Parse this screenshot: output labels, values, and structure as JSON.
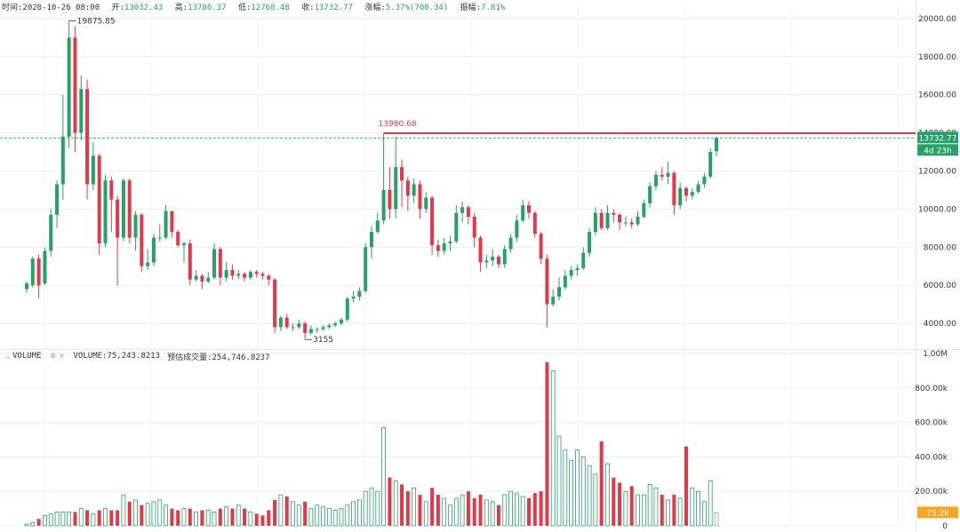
{
  "info": {
    "time_label": "时间:",
    "time_value": "2020-10-26 08:00",
    "open_label": "开:",
    "open_value": "13032.43",
    "high_label": "高:",
    "high_value": "13786.37",
    "low_label": "低:",
    "low_value": "12768.48",
    "close_label": "收:",
    "close_value": "13732.77",
    "change_label": "涨幅:",
    "change_value": "5.37%(700.34)",
    "amp_label": "振幅:",
    "amp_value": "7.81%"
  },
  "volume_header": {
    "collapse_glyph": "⌄",
    "label": "VOLUME",
    "settings_glyph": "⚙",
    "close_glyph": "×",
    "volume_text": "VOLUME:75,243.8213",
    "estimate_text": "预估成交量:254,746.8237"
  },
  "colors": {
    "up": "#26a269",
    "down": "#e0394a",
    "grid": "#eeeeee",
    "price_line": "#e0394a",
    "current_tag": "#26a269",
    "volume_tag": "#f5a623"
  },
  "chart_data": {
    "type": "candlestick",
    "price_axis": {
      "ticks": [
        "20000.00",
        "18000.00",
        "16000.00",
        "14000.00",
        "12000.00",
        "10000.00",
        "8000.00",
        "6000.00",
        "4000.00"
      ],
      "range": [
        2700,
        20600
      ]
    },
    "volume_axis": {
      "ticks": [
        "1.00M",
        "800.00k",
        "600.00k",
        "400.00k",
        "200.00k",
        "0"
      ],
      "range": [
        0,
        1000000
      ]
    },
    "annotations": {
      "high_label": "19875.85",
      "low_label": "3155",
      "resistance_label": "13980.68",
      "resistance_value": 13980.68,
      "current_price": "13732.77",
      "current_price_value": 13732.77,
      "countdown": "4d 23h",
      "current_volume": "75.2k"
    },
    "candles": [
      [
        5800,
        6100,
        5600,
        6200,
        0.01
      ],
      [
        6000,
        7400,
        5900,
        7500,
        0.02
      ],
      [
        7400,
        6000,
        5300,
        7600,
        0.04
      ],
      [
        6100,
        7800,
        6000,
        8000,
        0.06
      ],
      [
        7800,
        9700,
        7500,
        10000,
        0.07
      ],
      [
        9700,
        11300,
        9000,
        11500,
        0.08
      ],
      [
        11300,
        13800,
        10500,
        16000,
        0.08
      ],
      [
        13800,
        19000,
        13200,
        19875.85,
        0.08
      ],
      [
        19000,
        14000,
        13000,
        19600,
        0.08
      ],
      [
        14000,
        16300,
        13600,
        17000,
        0.1
      ],
      [
        16300,
        11300,
        10500,
        16800,
        0.09
      ],
      [
        11300,
        12800,
        11000,
        13500,
        0.07
      ],
      [
        12800,
        8200,
        7600,
        12900,
        0.09
      ],
      [
        8200,
        11500,
        8000,
        11800,
        0.1
      ],
      [
        11500,
        10500,
        8800,
        11700,
        0.09
      ],
      [
        10500,
        8500,
        6000,
        10700,
        0.09
      ],
      [
        8500,
        11500,
        8300,
        11600,
        0.18
      ],
      [
        11500,
        8500,
        8200,
        11600,
        0.14
      ],
      [
        8500,
        9700,
        7800,
        9900,
        0.15
      ],
      [
        9700,
        7000,
        6700,
        9800,
        0.12
      ],
      [
        7000,
        7200,
        6800,
        7900,
        0.13
      ],
      [
        7200,
        8500,
        7000,
        8700,
        0.14
      ],
      [
        8500,
        8500,
        8300,
        9200,
        0.15
      ],
      [
        8500,
        9900,
        8400,
        10200,
        0.12
      ],
      [
        9900,
        8800,
        8500,
        9900,
        0.1
      ],
      [
        8800,
        8100,
        8000,
        8900,
        0.09
      ],
      [
        8100,
        8200,
        7200,
        8300,
        0.1
      ],
      [
        8200,
        6300,
        6000,
        8400,
        0.1
      ],
      [
        6300,
        6500,
        6200,
        6800,
        0.08
      ],
      [
        6500,
        6200,
        5800,
        6600,
        0.09
      ],
      [
        6200,
        6400,
        6100,
        6700,
        0.09
      ],
      [
        6400,
        7900,
        6300,
        8200,
        0.08
      ],
      [
        7900,
        6400,
        6000,
        8000,
        0.1
      ],
      [
        6400,
        6800,
        6200,
        7200,
        0.11
      ],
      [
        6800,
        6500,
        6300,
        7100,
        0.1
      ],
      [
        6500,
        6600,
        6300,
        6800,
        0.12
      ],
      [
        6600,
        6400,
        6200,
        6700,
        0.1
      ],
      [
        6400,
        6700,
        6300,
        6800,
        0.08
      ],
      [
        6700,
        6600,
        6400,
        6800,
        0.07
      ],
      [
        6600,
        6500,
        6300,
        6700,
        0.06
      ],
      [
        6500,
        6300,
        6000,
        6600,
        0.09
      ],
      [
        6300,
        3800,
        3500,
        6400,
        0.15
      ],
      [
        3800,
        4300,
        3600,
        4400,
        0.18
      ],
      [
        4300,
        3800,
        3700,
        4500,
        0.17
      ],
      [
        3800,
        3800,
        3600,
        4000,
        0.14
      ],
      [
        3800,
        4000,
        3700,
        4200,
        0.12
      ],
      [
        4000,
        3500,
        3155,
        4100,
        0.14
      ],
      [
        3500,
        3700,
        3400,
        3900,
        0.1
      ],
      [
        3700,
        3700,
        3500,
        3800,
        0.12
      ],
      [
        3700,
        3800,
        3600,
        3900,
        0.11
      ],
      [
        3800,
        3900,
        3700,
        4000,
        0.1
      ],
      [
        3900,
        4000,
        3800,
        4100,
        0.09
      ],
      [
        4000,
        4200,
        3900,
        4300,
        0.1
      ],
      [
        4200,
        5300,
        4100,
        5400,
        0.12
      ],
      [
        5300,
        5400,
        5100,
        5700,
        0.14
      ],
      [
        5400,
        5700,
        5200,
        5900,
        0.15
      ],
      [
        5700,
        8000,
        5600,
        8200,
        0.2
      ],
      [
        8000,
        8800,
        7400,
        9100,
        0.22
      ],
      [
        8800,
        9400,
        8700,
        9800,
        0.2
      ],
      [
        9400,
        11000,
        9200,
        13980.68,
        0.57
      ],
      [
        11000,
        10000,
        9500,
        12200,
        0.28
      ],
      [
        10000,
        12200,
        9500,
        13800,
        0.26
      ],
      [
        12200,
        11500,
        10100,
        12600,
        0.24
      ],
      [
        11500,
        10700,
        9900,
        11700,
        0.2
      ],
      [
        10700,
        11300,
        10300,
        11600,
        0.22
      ],
      [
        11300,
        10000,
        9500,
        11500,
        0.18
      ],
      [
        10000,
        10600,
        9800,
        10900,
        0.14
      ],
      [
        10600,
        8100,
        7600,
        10700,
        0.22
      ],
      [
        8100,
        7800,
        7500,
        8400,
        0.18
      ],
      [
        7800,
        8200,
        7600,
        8500,
        0.16
      ],
      [
        8200,
        8300,
        7800,
        8600,
        0.12
      ],
      [
        8300,
        9800,
        8200,
        10200,
        0.16
      ],
      [
        9800,
        10100,
        9300,
        10400,
        0.18
      ],
      [
        10100,
        9600,
        9200,
        10200,
        0.2
      ],
      [
        9600,
        8500,
        8000,
        9800,
        0.16
      ],
      [
        8500,
        7200,
        6700,
        8600,
        0.18
      ],
      [
        7200,
        7300,
        6900,
        7600,
        0.15
      ],
      [
        7300,
        7500,
        7000,
        7900,
        0.14
      ],
      [
        7500,
        7100,
        6900,
        7600,
        0.12
      ],
      [
        7100,
        7900,
        6900,
        8100,
        0.18
      ],
      [
        7900,
        8500,
        7700,
        8700,
        0.2
      ],
      [
        8500,
        9400,
        8300,
        9700,
        0.19
      ],
      [
        9400,
        10200,
        9300,
        10500,
        0.17
      ],
      [
        10200,
        9800,
        9500,
        10400,
        0.16
      ],
      [
        9800,
        8700,
        8500,
        9900,
        0.19
      ],
      [
        8700,
        7400,
        7100,
        8800,
        0.2
      ],
      [
        7400,
        5000,
        3800,
        7600,
        0.95
      ],
      [
        5000,
        5400,
        4900,
        5800,
        0.9
      ],
      [
        5400,
        5900,
        5200,
        6400,
        0.52
      ],
      [
        5900,
        6500,
        5800,
        6800,
        0.44
      ],
      [
        6500,
        6800,
        6300,
        7000,
        0.38
      ],
      [
        6800,
        6900,
        6500,
        7100,
        0.44
      ],
      [
        6900,
        7700,
        6800,
        8000,
        0.4
      ],
      [
        7700,
        8800,
        7500,
        9000,
        0.35
      ],
      [
        8800,
        9800,
        8600,
        10100,
        0.3
      ],
      [
        9800,
        9000,
        8900,
        10000,
        0.49
      ],
      [
        9000,
        9800,
        8900,
        10200,
        0.36
      ],
      [
        9800,
        9700,
        9300,
        10000,
        0.28
      ],
      [
        9700,
        9300,
        8900,
        9800,
        0.25
      ],
      [
        9300,
        9300,
        9100,
        9600,
        0.2
      ],
      [
        9300,
        9200,
        9000,
        9500,
        0.23
      ],
      [
        9200,
        9600,
        9100,
        9900,
        0.18
      ],
      [
        9600,
        10300,
        9500,
        10500,
        0.18
      ],
      [
        10300,
        11200,
        10100,
        11400,
        0.24
      ],
      [
        11200,
        11800,
        11000,
        12000,
        0.22
      ],
      [
        11800,
        11700,
        11500,
        12200,
        0.18
      ],
      [
        11700,
        11900,
        11300,
        12500,
        0.15
      ],
      [
        11900,
        10200,
        9700,
        12000,
        0.18
      ],
      [
        10200,
        11100,
        10000,
        11400,
        0.16
      ],
      [
        11100,
        10700,
        10400,
        11200,
        0.46
      ],
      [
        10700,
        10900,
        10500,
        11100,
        0.22
      ],
      [
        10900,
        11300,
        10800,
        11500,
        0.2
      ],
      [
        11300,
        11700,
        11100,
        11900,
        0.14
      ],
      [
        11700,
        13000,
        11600,
        13200,
        0.26
      ],
      [
        13032.43,
        13732.77,
        12768.48,
        13786.37,
        0.0752
      ]
    ]
  }
}
